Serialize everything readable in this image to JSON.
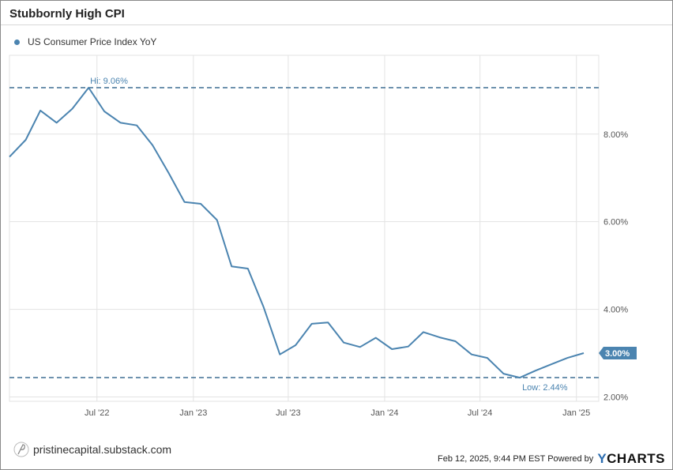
{
  "title": "Stubbornly High CPI",
  "footer": {
    "source": "pristinecapital.substack.com",
    "timestamp": "Feb 12, 2025, 9:44 PM EST Powered by",
    "brand_y": "Y",
    "brand_rest": "CHARTS"
  },
  "colors": {
    "line": "#4b84b0",
    "grid": "#e3e3e3",
    "text": "#555555",
    "badge": "#4b84b0"
  },
  "chart_data": {
    "type": "line",
    "series": [
      {
        "name": "US Consumer Price Index YoY",
        "x": [
          "2022-01",
          "2022-02",
          "2022-03",
          "2022-04",
          "2022-05",
          "2022-06",
          "2022-07",
          "2022-08",
          "2022-09",
          "2022-10",
          "2022-11",
          "2022-12",
          "2023-01",
          "2023-02",
          "2023-03",
          "2023-04",
          "2023-05",
          "2023-06",
          "2023-07",
          "2023-08",
          "2023-09",
          "2023-10",
          "2023-11",
          "2023-12",
          "2024-01",
          "2024-02",
          "2024-03",
          "2024-04",
          "2024-05",
          "2024-06",
          "2024-07",
          "2024-08",
          "2024-09",
          "2024-10",
          "2024-11",
          "2024-12",
          "2025-01"
        ],
        "values": [
          7.48,
          7.87,
          8.54,
          8.26,
          8.58,
          9.06,
          8.52,
          8.26,
          8.2,
          7.75,
          7.11,
          6.45,
          6.41,
          6.04,
          4.98,
          4.93,
          4.05,
          2.97,
          3.18,
          3.67,
          3.7,
          3.24,
          3.14,
          3.35,
          3.09,
          3.15,
          3.48,
          3.36,
          3.27,
          2.97,
          2.89,
          2.53,
          2.44,
          2.6,
          2.75,
          2.89,
          3.0
        ]
      }
    ],
    "x_tick_labels": [
      "Jul '22",
      "Jan '23",
      "Jul '23",
      "Jan '24",
      "Jul '24",
      "Jan '25"
    ],
    "y_tick_labels": [
      "2.00%",
      "4.00%",
      "6.00%",
      "8.00%"
    ],
    "ylim": [
      1.9,
      9.8
    ],
    "annotations": {
      "high": {
        "label": "Hi: 9.06%",
        "value": 9.06
      },
      "low": {
        "label": "Low: 2.44%",
        "value": 2.44
      },
      "last": {
        "label": "3.00%",
        "value": 3.0
      }
    },
    "grid": true,
    "legend_position": "top-left"
  }
}
